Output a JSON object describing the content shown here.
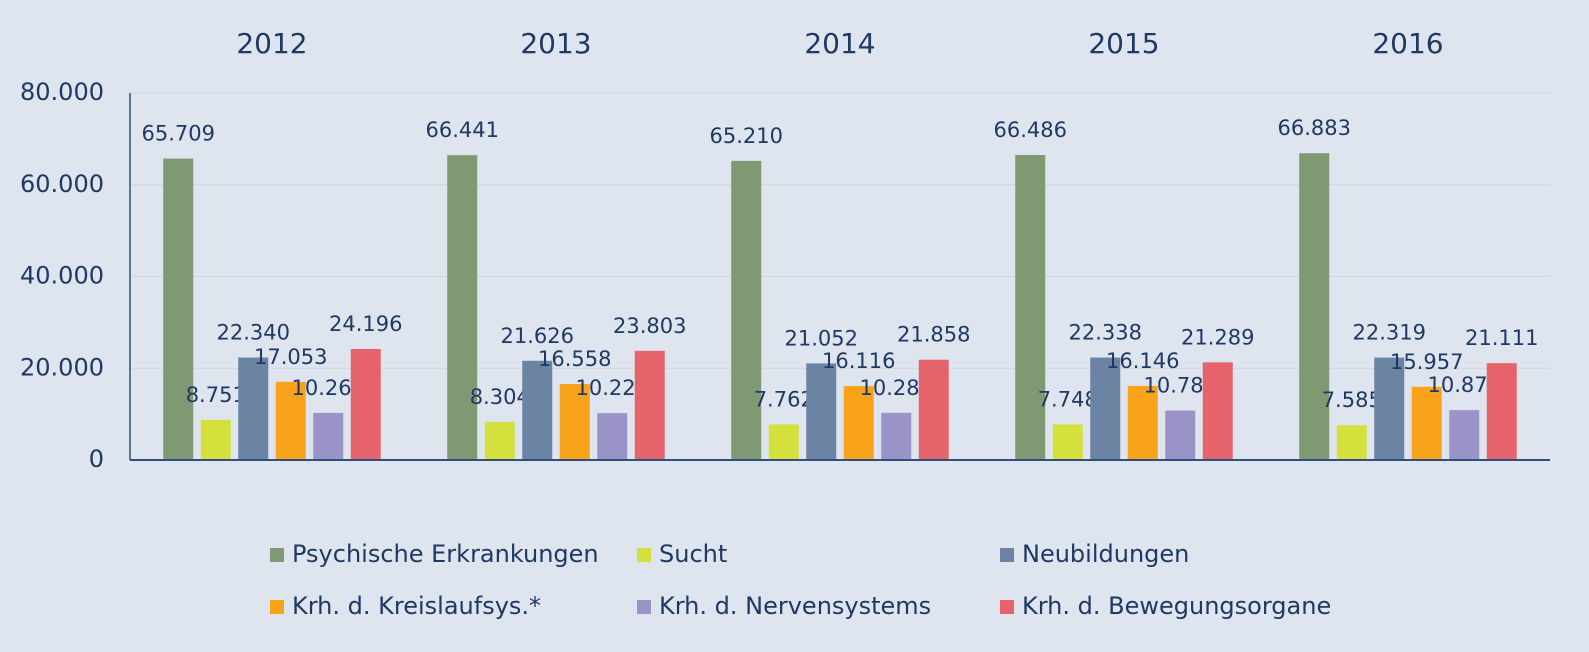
{
  "chart_data": {
    "type": "bar",
    "categories": [
      "2012",
      "2013",
      "2014",
      "2015",
      "2016"
    ],
    "series": [
      {
        "name": "Psychische Erkrankungen",
        "color": "#7f9a72",
        "values": [
          65709,
          66441,
          65210,
          66486,
          66883
        ],
        "value_labels": [
          "65.709",
          "66.441",
          "65.210",
          "66.486",
          "66.883"
        ]
      },
      {
        "name": "Sucht",
        "color": "#d4e03c",
        "values": [
          8751,
          8304,
          7762,
          7748,
          7585
        ],
        "value_labels": [
          "8.751",
          "8.304",
          "7.762",
          "7.748",
          "7.585"
        ]
      },
      {
        "name": "Neubildungen",
        "color": "#6b84a3",
        "values": [
          22340,
          21626,
          21052,
          22338,
          22319
        ],
        "value_labels": [
          "22.340",
          "21.626",
          "21.052",
          "22.338",
          "22.319"
        ]
      },
      {
        "name": "Krh. d. Kreislaufsys.*",
        "color": "#f9a31b",
        "values": [
          17053,
          16558,
          16116,
          16146,
          15957
        ],
        "value_labels": [
          "17.053",
          "16.558",
          "16.116",
          "16.146",
          "15.957"
        ]
      },
      {
        "name": "Krh. d. Nervensystems",
        "color": "#9b94c8",
        "values": [
          10265,
          10224,
          10281,
          10789,
          10876
        ],
        "value_labels": [
          "10.265",
          "10.224",
          "10.281",
          "10.789",
          "10.876"
        ]
      },
      {
        "name": "Krh. d. Bewegungsorgane",
        "color": "#e6636b",
        "values": [
          24196,
          23803,
          21858,
          21289,
          21111
        ],
        "value_labels": [
          "24.196",
          "23.803",
          "21.858",
          "21.289",
          "21.111"
        ]
      }
    ],
    "ylim": [
      0,
      80000
    ],
    "yticks": [
      0,
      {
        "value": 20000,
        "label": "20.000"
      },
      {
        "value": 40000,
        "label": "40.000"
      },
      {
        "value": 60000,
        "label": "60.000"
      },
      {
        "value": 80000,
        "label": "80.000"
      }
    ],
    "grid": true
  }
}
